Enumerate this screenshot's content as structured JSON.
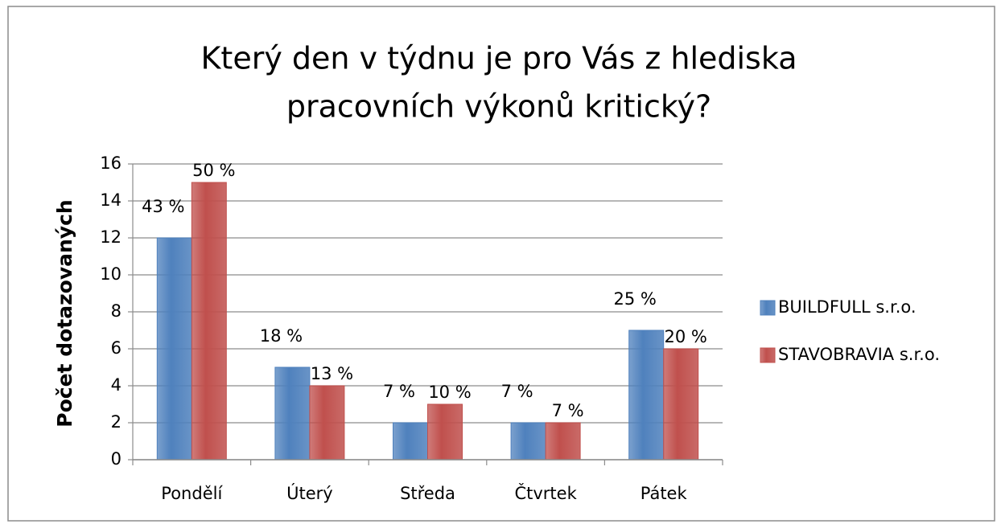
{
  "chart_data": {
    "type": "bar",
    "title": [
      "Který den v týdnu je pro Vás z hlediska",
      "pracovních výkonů kritický?"
    ],
    "y_label": "Počet dotazovaných",
    "categories": [
      "Pondělí",
      "Úterý",
      "Středa",
      "Čtvrtek",
      "Pátek"
    ],
    "series": [
      {
        "name": "BUILDFULL s.r.o.",
        "color": "#4f81bd",
        "values": [
          12,
          5,
          2,
          2,
          7
        ],
        "data_labels": [
          "43 %",
          "18 %",
          "7 %",
          "7 %",
          "25 %"
        ]
      },
      {
        "name": "STAVOBRAVIA s.r.o.",
        "color": "#c0504d",
        "values": [
          15,
          4,
          3,
          2,
          6
        ],
        "data_labels": [
          "50 %",
          "13 %",
          "10 %",
          "7 %",
          "20 %"
        ]
      }
    ],
    "ylim": [
      0,
      16
    ],
    "yticks": [
      0,
      2,
      4,
      6,
      8,
      10,
      12,
      14,
      16
    ],
    "grid": true,
    "legend": "right"
  }
}
